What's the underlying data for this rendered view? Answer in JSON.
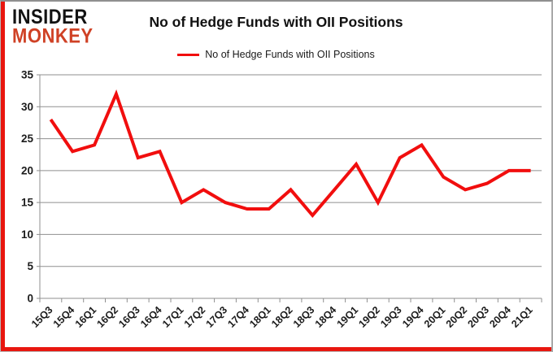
{
  "branding": {
    "logo_line1": "INSIDER",
    "logo_line2": "MONKEY"
  },
  "header": {
    "title": "No of Hedge Funds with OII Positions"
  },
  "legend": {
    "label": "No of Hedge Funds with OII Positions"
  },
  "colors": {
    "line": "#f10e0e",
    "grid": "#8f8f8f",
    "axis": "#8f8f8f",
    "text": "#1c1c1c",
    "logo_red": "#cf4125",
    "accent_border": "#e8160f"
  },
  "chart_data": {
    "type": "line",
    "title": "No of Hedge Funds with OII Positions",
    "xlabel": "",
    "ylabel": "",
    "categories": [
      "15Q3",
      "15Q4",
      "16Q1",
      "16Q2",
      "16Q3",
      "16Q4",
      "17Q1",
      "17Q2",
      "17Q3",
      "17Q4",
      "18Q1",
      "18Q2",
      "18Q3",
      "18Q4",
      "19Q1",
      "19Q2",
      "19Q3",
      "19Q4",
      "20Q1",
      "20Q2",
      "20Q3",
      "20Q4",
      "21Q1"
    ],
    "series": [
      {
        "name": "No of Hedge Funds with OII Positions",
        "color": "#f10e0e",
        "values": [
          28,
          23,
          24,
          32,
          22,
          23,
          15,
          17,
          15,
          14,
          14,
          17,
          13,
          17,
          21,
          15,
          22,
          24,
          19,
          17,
          18,
          20,
          20
        ]
      }
    ],
    "ylim": [
      0,
      35
    ],
    "yticks": [
      0,
      5,
      10,
      15,
      20,
      25,
      30,
      35
    ],
    "grid": true,
    "legend_position": "top"
  }
}
